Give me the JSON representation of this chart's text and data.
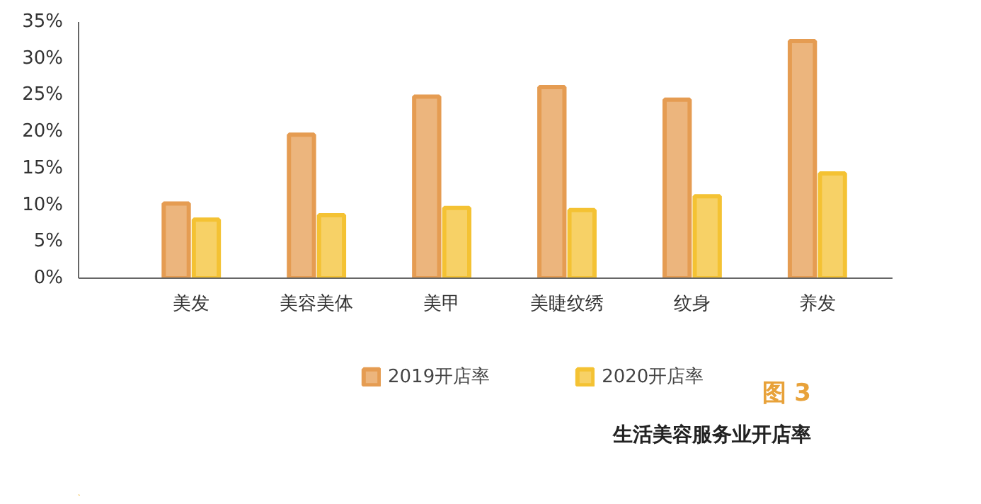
{
  "chart_data": {
    "type": "bar",
    "title": "生活美容服务业开店率",
    "annotations": [
      "图 3"
    ],
    "categories": [
      "美发",
      "美容美体",
      "美甲",
      "美睫纹绣",
      "纹身",
      "养发"
    ],
    "series": [
      {
        "name": "2019开店率",
        "color": "#e59c52",
        "values": [
          10.2,
          19.6,
          24.8,
          26.1,
          24.4,
          32.4
        ]
      },
      {
        "name": "2020开店率",
        "color": "#f4c233",
        "values": [
          8.0,
          8.6,
          9.6,
          9.3,
          11.2,
          14.3
        ]
      }
    ],
    "ylim": [
      0,
      35
    ],
    "yticks": [
      {
        "value": 0,
        "label": "0%"
      },
      {
        "value": 5,
        "label": "5%"
      },
      {
        "value": 10,
        "label": "10%"
      },
      {
        "value": 15,
        "label": "15%"
      },
      {
        "value": 20,
        "label": "20%"
      },
      {
        "value": 25,
        "label": "25%"
      },
      {
        "value": 30,
        "label": "30%"
      },
      {
        "value": 35,
        "label": "35%"
      }
    ],
    "grid": false,
    "legend": "bottom"
  }
}
